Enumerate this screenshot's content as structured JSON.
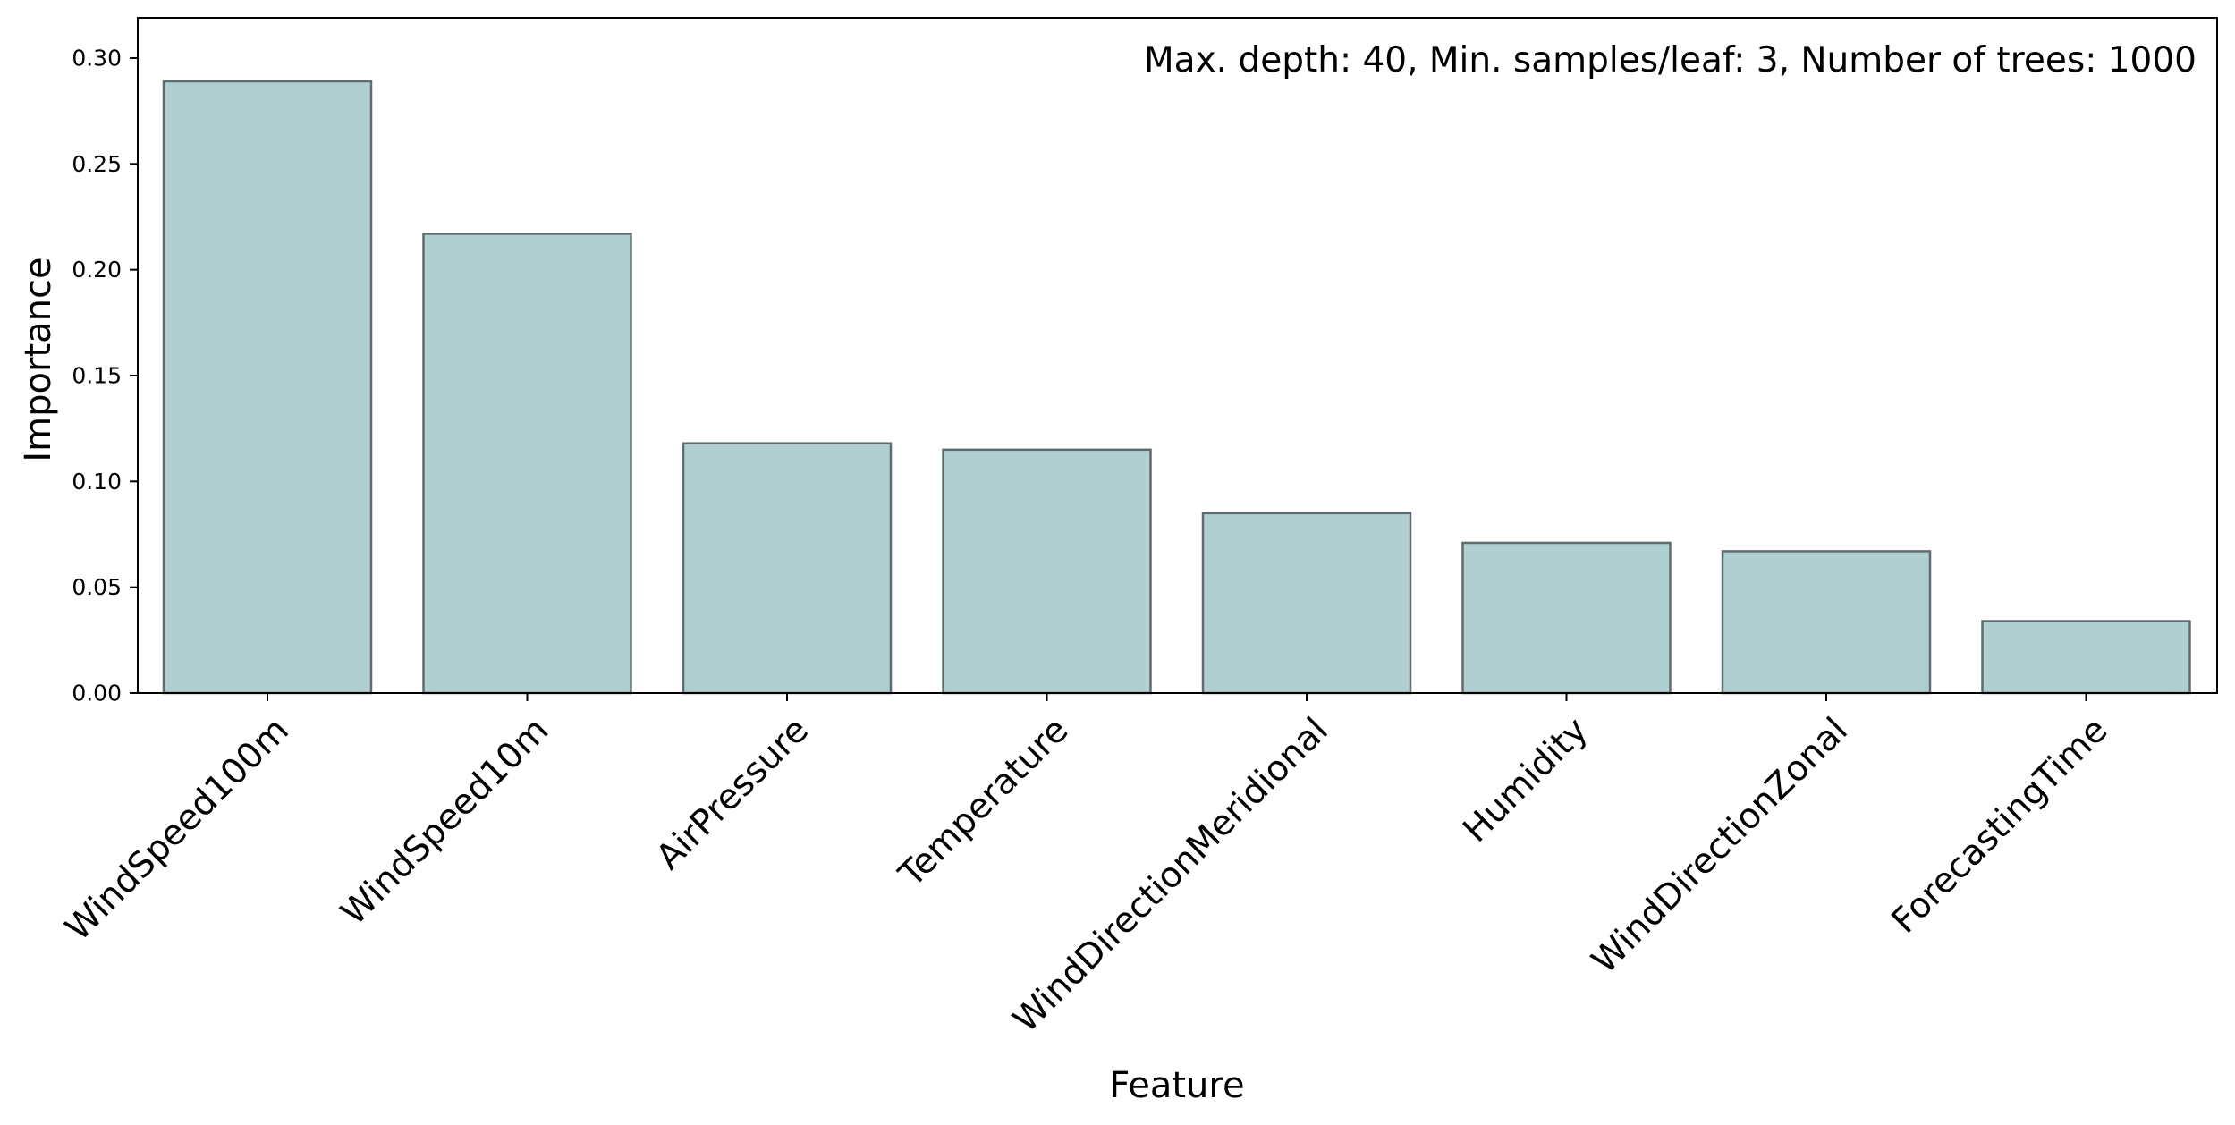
{
  "chart_data": {
    "type": "bar",
    "title": "",
    "annotation": "Max. depth: 40, Min. samples/leaf: 3, Number of trees: 1000",
    "xlabel": "Feature",
    "ylabel": "Importance",
    "categories": [
      "WindSpeed100m",
      "WindSpeed10m",
      "AirPressure",
      "Temperature",
      "WindDirectionMeridional",
      "Humidity",
      "WindDirectionZonal",
      "ForecastingTime"
    ],
    "values": [
      0.289,
      0.217,
      0.118,
      0.115,
      0.085,
      0.071,
      0.067,
      0.034
    ],
    "ylim": [
      0,
      0.319
    ],
    "yticks": [
      0.0,
      0.05,
      0.1,
      0.15,
      0.2,
      0.25,
      0.3
    ],
    "ytick_labels": [
      "0.00",
      "0.05",
      "0.10",
      "0.15",
      "0.20",
      "0.25",
      "0.30"
    ],
    "grid": false,
    "legend": "none",
    "colors": {
      "bar_fill": "#b0cfd1",
      "bar_edge": "#5f6b6c"
    }
  }
}
